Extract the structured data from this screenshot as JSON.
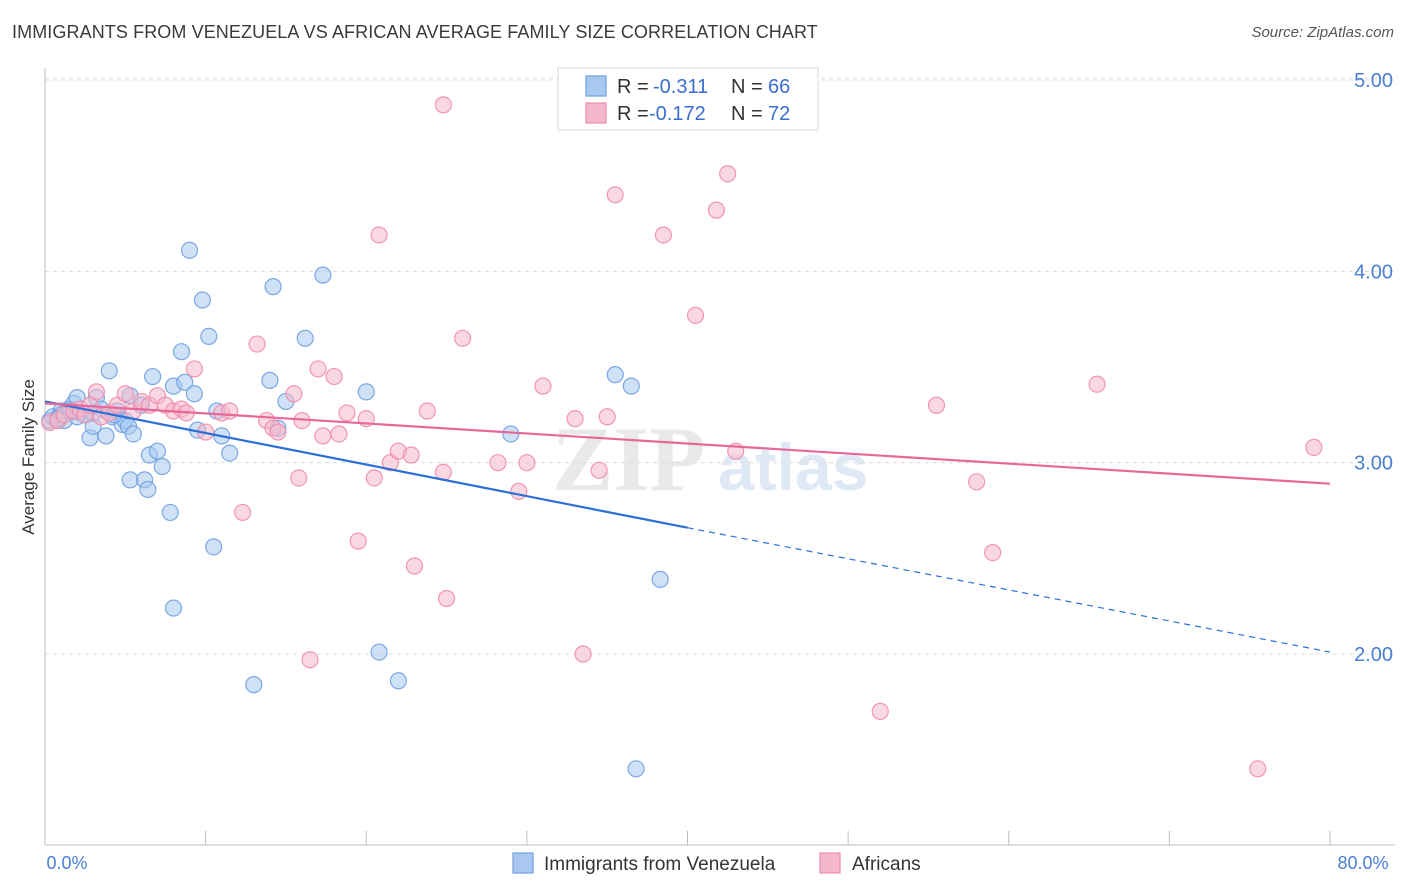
{
  "title": "IMMIGRANTS FROM VENEZUELA VS AFRICAN AVERAGE FAMILY SIZE CORRELATION CHART",
  "source": "Source: ZipAtlas.com",
  "watermark": {
    "zip": "ZIP",
    "atlas": "atlas"
  },
  "legend": {
    "series1": {
      "r_label": "R =",
      "r_value": "-0.311",
      "n_label": "N =",
      "n_value": "66",
      "color": "#a8c8f0"
    },
    "series2": {
      "r_label": "R =",
      "r_value": "-0.172",
      "n_label": "N =",
      "n_value": "72",
      "color": "#f5b8cb"
    }
  },
  "bottom_legend": [
    "Immigrants from Venezuela",
    "Africans"
  ],
  "chart_data": {
    "type": "scatter",
    "ylabel": "Average Family Size",
    "xlim": [
      0,
      80
    ],
    "ylim": [
      1.0,
      5.1
    ],
    "x_tick_labels": [
      "0.0%",
      "80.0%"
    ],
    "y_ticks": [
      2.0,
      3.0,
      4.0,
      5.0
    ],
    "y_tick_labels": [
      "2.00",
      "3.00",
      "4.00",
      "5.00"
    ],
    "grid": true,
    "legend_position": "top-center",
    "series": [
      {
        "name": "Immigrants from Venezuela",
        "color": "#6fa0e0",
        "fill": "#a8c8f0",
        "trend": {
          "x0": 0,
          "y0": 3.32,
          "x1": 40,
          "y1": 2.66,
          "dash_to_x": 80,
          "dash_to_y": 2.01,
          "color": "#2b6fd6"
        },
        "points": [
          [
            0.3,
            3.22
          ],
          [
            0.5,
            3.24
          ],
          [
            0.8,
            3.22
          ],
          [
            1.0,
            3.27
          ],
          [
            1.2,
            3.22
          ],
          [
            1.5,
            3.28
          ],
          [
            1.8,
            3.31
          ],
          [
            2.0,
            3.34
          ],
          [
            2.2,
            3.26
          ],
          [
            2.5,
            3.25
          ],
          [
            2.8,
            3.13
          ],
          [
            3.0,
            3.19
          ],
          [
            3.2,
            3.34
          ],
          [
            3.5,
            3.28
          ],
          [
            3.8,
            3.14
          ],
          [
            4.0,
            3.48
          ],
          [
            4.2,
            3.24
          ],
          [
            4.5,
            3.27
          ],
          [
            4.8,
            3.2
          ],
          [
            5.0,
            3.22
          ],
          [
            5.2,
            3.19
          ],
          [
            5.3,
            3.35
          ],
          [
            5.5,
            3.15
          ],
          [
            5.3,
            2.91
          ],
          [
            6.0,
            3.3
          ],
          [
            6.2,
            2.91
          ],
          [
            6.4,
            2.86
          ],
          [
            6.5,
            3.04
          ],
          [
            6.7,
            3.45
          ],
          [
            7.0,
            3.06
          ],
          [
            7.3,
            2.98
          ],
          [
            7.8,
            2.74
          ],
          [
            8.0,
            3.4
          ],
          [
            8.0,
            2.24
          ],
          [
            8.5,
            3.58
          ],
          [
            8.7,
            3.42
          ],
          [
            9.0,
            4.11
          ],
          [
            9.3,
            3.36
          ],
          [
            9.5,
            3.17
          ],
          [
            9.8,
            3.85
          ],
          [
            10.2,
            3.66
          ],
          [
            10.5,
            2.56
          ],
          [
            10.7,
            3.27
          ],
          [
            11.0,
            3.14
          ],
          [
            11.5,
            3.05
          ],
          [
            13.0,
            1.84
          ],
          [
            14.0,
            3.43
          ],
          [
            14.2,
            3.92
          ],
          [
            14.5,
            3.18
          ],
          [
            15.0,
            3.32
          ],
          [
            16.2,
            3.65
          ],
          [
            17.3,
            3.98
          ],
          [
            20.0,
            3.37
          ],
          [
            20.8,
            2.01
          ],
          [
            22.0,
            1.86
          ],
          [
            29.0,
            3.15
          ],
          [
            35.5,
            3.46
          ],
          [
            36.5,
            3.4
          ],
          [
            36.8,
            1.4
          ],
          [
            38.3,
            2.39
          ],
          [
            1.0,
            3.25
          ],
          [
            2.0,
            3.24
          ],
          [
            3.0,
            3.26
          ],
          [
            4.3,
            3.25
          ],
          [
            0.8,
            3.23
          ],
          [
            1.6,
            3.27
          ]
        ]
      },
      {
        "name": "Africans",
        "color": "#f08cab",
        "fill": "#f5b8cb",
        "trend": {
          "x0": 0,
          "y0": 3.31,
          "x1": 80,
          "y1": 2.89,
          "color": "#e8679a"
        },
        "points": [
          [
            0.3,
            3.21
          ],
          [
            0.8,
            3.22
          ],
          [
            1.2,
            3.25
          ],
          [
            1.8,
            3.27
          ],
          [
            2.2,
            3.28
          ],
          [
            2.5,
            3.25
          ],
          [
            3.2,
            3.37
          ],
          [
            3.5,
            3.24
          ],
          [
            4.0,
            3.26
          ],
          [
            4.5,
            3.3
          ],
          [
            5.0,
            3.36
          ],
          [
            5.5,
            3.27
          ],
          [
            6.0,
            3.32
          ],
          [
            6.5,
            3.3
          ],
          [
            7.0,
            3.35
          ],
          [
            7.5,
            3.3
          ],
          [
            8.0,
            3.27
          ],
          [
            8.5,
            3.28
          ],
          [
            8.8,
            3.26
          ],
          [
            9.3,
            3.49
          ],
          [
            10.0,
            3.16
          ],
          [
            11.0,
            3.26
          ],
          [
            11.5,
            3.27
          ],
          [
            12.3,
            2.74
          ],
          [
            13.2,
            3.62
          ],
          [
            13.8,
            3.22
          ],
          [
            14.2,
            3.18
          ],
          [
            14.5,
            3.16
          ],
          [
            15.5,
            3.36
          ],
          [
            15.8,
            2.92
          ],
          [
            16.0,
            3.22
          ],
          [
            16.5,
            1.97
          ],
          [
            17.0,
            3.49
          ],
          [
            17.3,
            3.14
          ],
          [
            18.0,
            3.45
          ],
          [
            18.3,
            3.15
          ],
          [
            18.8,
            3.26
          ],
          [
            19.5,
            2.59
          ],
          [
            20.0,
            3.23
          ],
          [
            20.5,
            2.92
          ],
          [
            20.8,
            4.19
          ],
          [
            21.5,
            3.0
          ],
          [
            22.0,
            3.06
          ],
          [
            22.8,
            3.04
          ],
          [
            23.0,
            2.46
          ],
          [
            23.8,
            3.27
          ],
          [
            24.8,
            2.95
          ],
          [
            25.0,
            2.29
          ],
          [
            26.0,
            3.65
          ],
          [
            28.2,
            3.0
          ],
          [
            29.5,
            2.85
          ],
          [
            30.0,
            3.0
          ],
          [
            31.0,
            3.4
          ],
          [
            33.0,
            3.23
          ],
          [
            33.5,
            2.0
          ],
          [
            34.5,
            2.96
          ],
          [
            35.0,
            3.24
          ],
          [
            35.5,
            4.4
          ],
          [
            38.5,
            4.19
          ],
          [
            40.5,
            3.77
          ],
          [
            41.8,
            4.32
          ],
          [
            42.5,
            4.51
          ],
          [
            43.0,
            3.06
          ],
          [
            52.0,
            1.7
          ],
          [
            55.5,
            3.3
          ],
          [
            58.0,
            2.9
          ],
          [
            59.0,
            2.53
          ],
          [
            65.5,
            3.41
          ],
          [
            75.5,
            1.4
          ],
          [
            79.0,
            3.08
          ],
          [
            24.8,
            4.87
          ],
          [
            2.8,
            3.3
          ]
        ]
      }
    ]
  }
}
